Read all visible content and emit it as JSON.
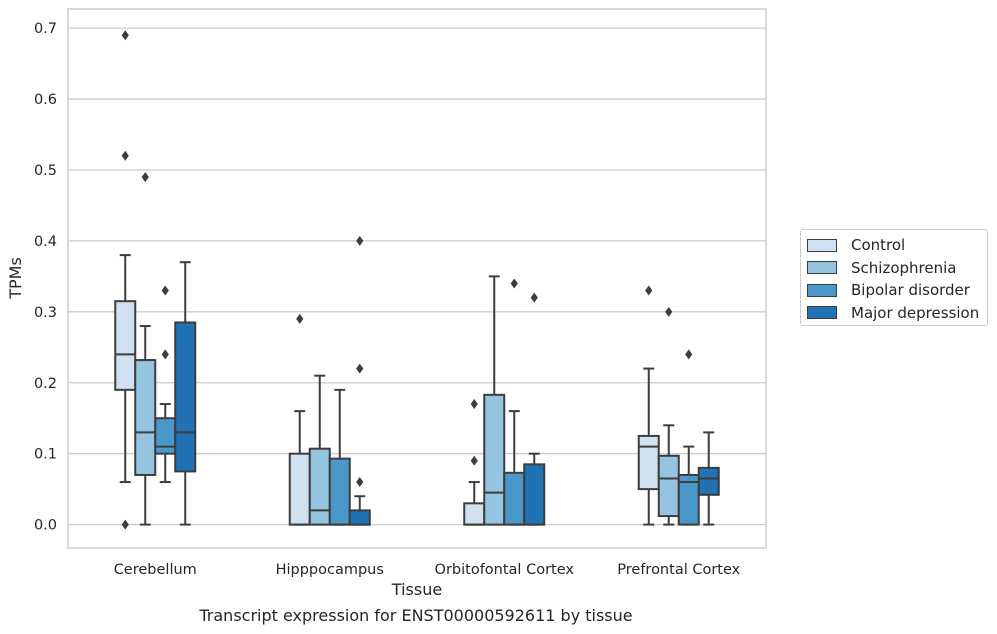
{
  "chart_data": {
    "type": "box",
    "xlabel": "Tissue",
    "ylabel": "TPMs",
    "ylim": [
      -0.033,
      0.727
    ],
    "yticks": [
      0.0,
      0.1,
      0.2,
      0.3,
      0.4,
      0.5,
      0.6,
      0.7
    ],
    "ytick_labels": [
      "0.0",
      "0.1",
      "0.2",
      "0.3",
      "0.4",
      "0.5",
      "0.6",
      "0.7"
    ],
    "grid": "horizontal",
    "legend_position": "right-center",
    "categories": [
      "Cerebellum",
      "Hipppocampus",
      "Orbitofontal Cortex",
      "Prefrontal Cortex"
    ],
    "series": [
      {
        "name": "Control",
        "color": "#d0e1f2",
        "boxes": [
          {
            "whislo": 0.06,
            "q1": 0.19,
            "med": 0.24,
            "q3": 0.315,
            "whishi": 0.38,
            "fliers": [
              0.0,
              0.52,
              0.69
            ]
          },
          {
            "whislo": 0.0,
            "q1": 0.0,
            "med": 0.0,
            "q3": 0.1,
            "whishi": 0.16,
            "fliers": [
              0.29
            ]
          },
          {
            "whislo": 0.0,
            "q1": 0.0,
            "med": 0.0,
            "q3": 0.03,
            "whishi": 0.06,
            "fliers": [
              0.09,
              0.17
            ]
          },
          {
            "whislo": 0.0,
            "q1": 0.05,
            "med": 0.11,
            "q3": 0.125,
            "whishi": 0.22,
            "fliers": [
              0.33
            ]
          }
        ]
      },
      {
        "name": "Schizophrenia",
        "color": "#94c4df",
        "boxes": [
          {
            "whislo": 0.0,
            "q1": 0.07,
            "med": 0.13,
            "q3": 0.232,
            "whishi": 0.28,
            "fliers": [
              0.49
            ]
          },
          {
            "whislo": 0.0,
            "q1": 0.0,
            "med": 0.02,
            "q3": 0.107,
            "whishi": 0.21,
            "fliers": []
          },
          {
            "whislo": 0.0,
            "q1": 0.0,
            "med": 0.045,
            "q3": 0.183,
            "whishi": 0.35,
            "fliers": []
          },
          {
            "whislo": 0.0,
            "q1": 0.012,
            "med": 0.065,
            "q3": 0.097,
            "whishi": 0.14,
            "fliers": [
              0.3
            ]
          }
        ]
      },
      {
        "name": "Bipolar disorder",
        "color": "#4a98c9",
        "boxes": [
          {
            "whislo": 0.06,
            "q1": 0.1,
            "med": 0.11,
            "q3": 0.15,
            "whishi": 0.17,
            "fliers": [
              0.24,
              0.33
            ]
          },
          {
            "whislo": 0.0,
            "q1": 0.0,
            "med": 0.0,
            "q3": 0.093,
            "whishi": 0.19,
            "fliers": []
          },
          {
            "whislo": 0.0,
            "q1": 0.0,
            "med": 0.0,
            "q3": 0.073,
            "whishi": 0.16,
            "fliers": [
              0.34
            ]
          },
          {
            "whislo": 0.0,
            "q1": 0.0,
            "med": 0.06,
            "q3": 0.07,
            "whishi": 0.11,
            "fliers": [
              0.24
            ]
          }
        ]
      },
      {
        "name": "Major depression",
        "color": "#2171b5",
        "boxes": [
          {
            "whislo": 0.0,
            "q1": 0.075,
            "med": 0.13,
            "q3": 0.285,
            "whishi": 0.37,
            "fliers": []
          },
          {
            "whislo": 0.0,
            "q1": 0.0,
            "med": 0.0,
            "q3": 0.02,
            "whishi": 0.04,
            "fliers": [
              0.06,
              0.22,
              0.4
            ]
          },
          {
            "whislo": 0.0,
            "q1": 0.0,
            "med": 0.0,
            "q3": 0.085,
            "whishi": 0.1,
            "fliers": [
              0.32
            ]
          },
          {
            "whislo": 0.0,
            "q1": 0.042,
            "med": 0.065,
            "q3": 0.08,
            "whishi": 0.13,
            "fliers": []
          }
        ]
      }
    ]
  },
  "caption": "Transcript expression for ENST00000592611 by tissue"
}
